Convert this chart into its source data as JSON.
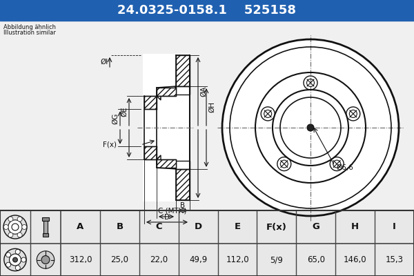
{
  "title_part_number": "24.0325-0158.1",
  "title_ref_number": "525158",
  "header_bg": "#2060b0",
  "header_text_color": "#ffffff",
  "table_headers": [
    "A",
    "B",
    "C",
    "D",
    "E",
    "F(x)",
    "G",
    "H",
    "I"
  ],
  "table_values": [
    "312,0",
    "25,0",
    "22,0",
    "49,9",
    "112,0",
    "5/9",
    "65,0",
    "146,0",
    "15,3"
  ],
  "label_abbildung": "Abbildung ähnlich",
  "label_illustration": "Illustration similar",
  "annotation_6_6": "Ø6,6",
  "bg_color": "#bebebe",
  "draw_bg_color": "#f0f0f0",
  "table_bg": "#e8e8e8",
  "line_color": "#111111",
  "hatch_color": "#555555",
  "dim_color": "#111111",
  "watermark_color": "#bbbbbb"
}
